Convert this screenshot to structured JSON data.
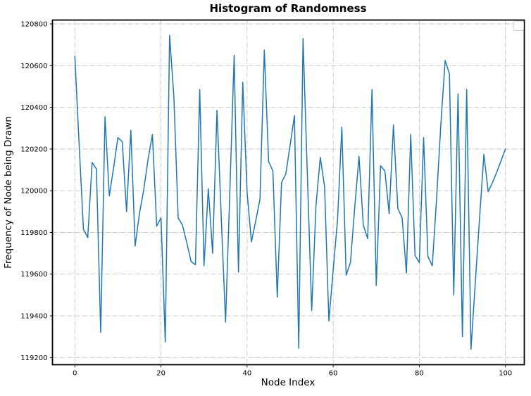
{
  "figure": {
    "background": "#ffffff"
  },
  "chart_data": {
    "type": "line",
    "title": "Histogram of Randomness",
    "xlabel": "Node Index",
    "ylabel": "Frequency of Node being Drawn",
    "x_note": "node index, one point per integer 0-100",
    "x": [
      0,
      1,
      2,
      3,
      4,
      5,
      6,
      7,
      8,
      9,
      10,
      11,
      12,
      13,
      14,
      15,
      16,
      17,
      18,
      19,
      20,
      21,
      22,
      23,
      24,
      25,
      26,
      27,
      28,
      29,
      30,
      31,
      32,
      33,
      34,
      35,
      36,
      37,
      38,
      39,
      40,
      41,
      42,
      43,
      44,
      45,
      46,
      47,
      48,
      49,
      50,
      51,
      52,
      53,
      54,
      55,
      56,
      57,
      58,
      59,
      60,
      61,
      62,
      63,
      64,
      65,
      66,
      67,
      68,
      69,
      70,
      71,
      72,
      73,
      74,
      75,
      76,
      77,
      78,
      79,
      80,
      81,
      82,
      83,
      84,
      85,
      86,
      87,
      88,
      89,
      90,
      91,
      92,
      93,
      94,
      95,
      96,
      97,
      98,
      99,
      100
    ],
    "values": [
      120645,
      120220,
      119815,
      119775,
      120135,
      120105,
      119320,
      120355,
      119975,
      120110,
      120255,
      120235,
      119900,
      120290,
      119735,
      119890,
      120005,
      120150,
      120270,
      119830,
      119870,
      119275,
      120745,
      120450,
      119870,
      119835,
      119750,
      119660,
      119645,
      120485,
      119640,
      120010,
      119700,
      120385,
      119870,
      119370,
      120000,
      120650,
      119610,
      120520,
      119990,
      119755,
      119855,
      119960,
      120675,
      120140,
      120095,
      119490,
      120040,
      120080,
      120220,
      120360,
      119245,
      120730,
      120070,
      119425,
      119930,
      120160,
      120020,
      119375,
      119620,
      119860,
      120305,
      119595,
      119655,
      119920,
      120165,
      119835,
      119770,
      120485,
      119545,
      120120,
      120095,
      119890,
      120315,
      119915,
      119870,
      119605,
      120270,
      119690,
      119655,
      120255,
      119685,
      119640,
      119960,
      120320,
      120625,
      120560,
      119500,
      120465,
      119300,
      120485,
      119240,
      119560,
      119870,
      120175,
      119995,
      120040,
      120090,
      120145,
      120200
    ],
    "xticks": [
      0,
      20,
      40,
      60,
      80,
      100
    ],
    "yticks": [
      119200,
      119400,
      119600,
      119800,
      120000,
      120200,
      120400,
      120600,
      120800
    ],
    "xlim": [
      -5,
      105
    ],
    "ylim": [
      119165,
      120820
    ],
    "grid": true,
    "grid_style": "dash-dot",
    "grid_color": "#c6c6c6",
    "line_color": "#1f77b4",
    "spine_color": "#000000",
    "legend": "empty legend box, top-right corner"
  }
}
